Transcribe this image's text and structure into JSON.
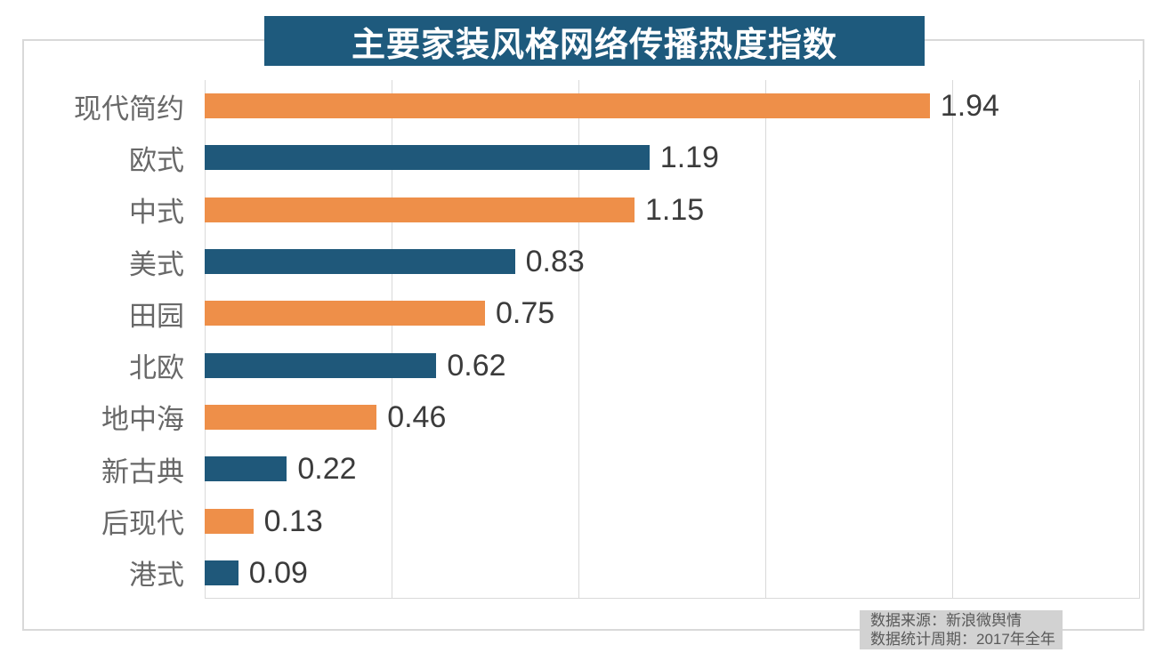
{
  "title": "主要家装风格网络传播热度指数",
  "source_box": {
    "line1": "数据来源：新浪微舆情",
    "line2": "数据统计周期：2017年全年"
  },
  "colors": {
    "title_bg": "#1E5A7D",
    "bar_orange": "#EE8F49",
    "bar_blue": "#1F587A",
    "grid": "#D9D9D9",
    "frame_border": "#D9D9D9",
    "category_label": "#686868",
    "value_label": "#3B3B3B",
    "source_bg": "#D2D2D2",
    "source_text": "#595959"
  },
  "chart_data": {
    "type": "bar",
    "orientation": "horizontal",
    "title": "主要家装风格网络传播热度指数",
    "categories": [
      "现代简约",
      "欧式",
      "中式",
      "美式",
      "田园",
      "北欧",
      "地中海",
      "新古典",
      "后现代",
      "港式"
    ],
    "values": [
      1.94,
      1.19,
      1.15,
      0.83,
      0.75,
      0.62,
      0.46,
      0.22,
      0.13,
      0.09
    ],
    "value_labels": [
      "1.94",
      "1.19",
      "1.15",
      "0.83",
      "0.75",
      "0.62",
      "0.46",
      "0.22",
      "0.13",
      "0.09"
    ],
    "xlim": [
      0,
      2.5
    ],
    "gridline_values": [
      0,
      0.5,
      1.0,
      1.5,
      2.0,
      2.5
    ],
    "grid": "vertical-only",
    "legend": "none",
    "data_labels": "outside-end",
    "bar_color_pattern": "alternating",
    "bar_colors": [
      "#EE8F49",
      "#1F587A"
    ]
  }
}
